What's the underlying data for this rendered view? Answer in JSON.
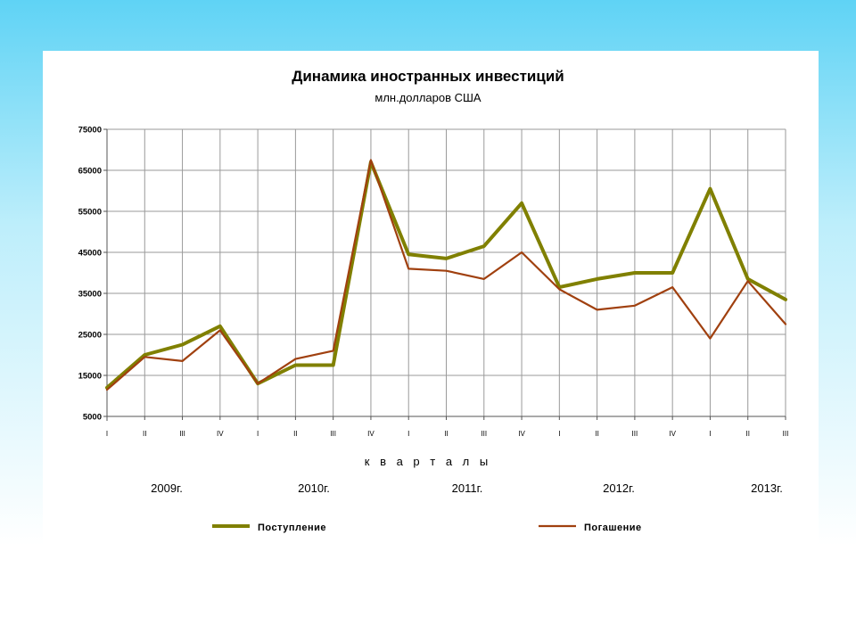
{
  "slide": {
    "background_colors": [
      "#5fd3f5",
      "#ffffff"
    ]
  },
  "chart_data": {
    "type": "line",
    "title": "Динамика иностранных инвестиций",
    "subtitle": "млн.долларов США",
    "xlabel": "к в а р т а л ы",
    "ylabel": "",
    "ylim": [
      5000,
      75000
    ],
    "yticks": [
      5000,
      15000,
      25000,
      35000,
      45000,
      55000,
      65000,
      75000
    ],
    "categories": [
      "I",
      "II",
      "III",
      "IV",
      "I",
      "II",
      "III",
      "IV",
      "I",
      "II",
      "III",
      "IV",
      "I",
      "II",
      "III",
      "IV",
      "I",
      "II",
      "III"
    ],
    "year_labels": [
      "2009г.",
      "2010г.",
      "2011г.",
      "2012г.",
      "2013г."
    ],
    "grid": true,
    "legend_position": "bottom",
    "series": [
      {
        "name": "Поступление",
        "color": "#808000",
        "values": [
          12000,
          20000,
          22500,
          27000,
          13000,
          17500,
          17500,
          67000,
          44500,
          43500,
          46500,
          57000,
          36500,
          38500,
          40000,
          40000,
          60500,
          38500,
          33500
        ]
      },
      {
        "name": "Погашение",
        "color": "#a0400f",
        "values": [
          11500,
          19500,
          18500,
          26000,
          13000,
          19000,
          21000,
          67500,
          41000,
          40500,
          38500,
          45000,
          36000,
          31000,
          32000,
          36500,
          24000,
          38000,
          27500
        ]
      }
    ]
  }
}
